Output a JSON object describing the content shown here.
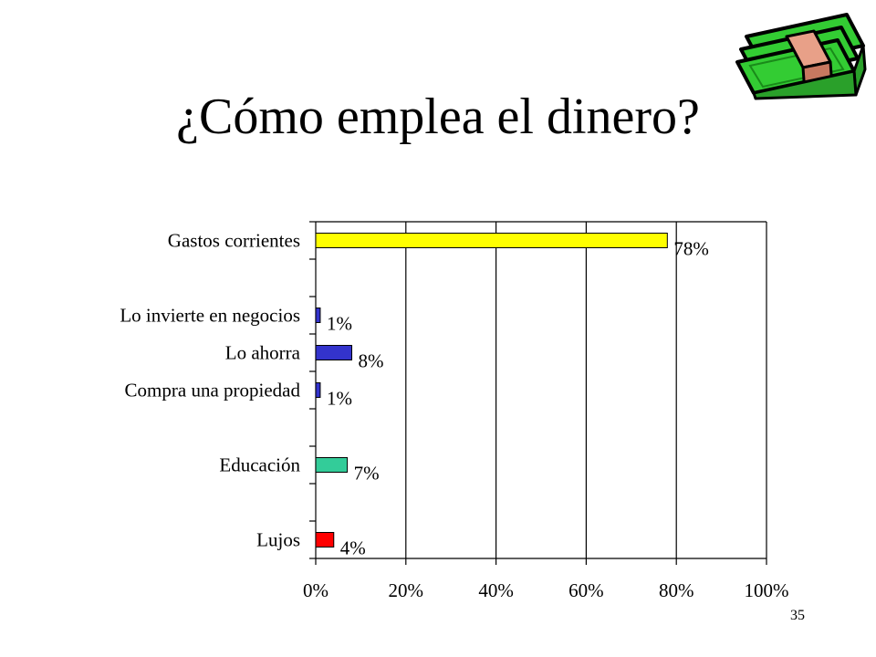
{
  "slide": {
    "title": "¿Cómo emplea el dinero?",
    "number": "35"
  },
  "icon": {
    "name": "money-stack-icon",
    "bill_color": "#33CC33",
    "band_color": "#E8A088"
  },
  "chart_data": {
    "type": "bar",
    "orientation": "horizontal",
    "title": "",
    "xlabel": "",
    "ylabel": "",
    "xlim": [
      0,
      100
    ],
    "x_tick_labels": [
      "0%",
      "20%",
      "40%",
      "60%",
      "80%",
      "100%"
    ],
    "x_ticks": [
      0,
      20,
      40,
      60,
      80,
      100
    ],
    "grid": "vertical",
    "legend": "none",
    "categories": [
      "Gastos corrientes",
      "",
      "Lo invierte en negocios",
      "Lo ahorra",
      "Compra una propiedad",
      "",
      "Educación",
      "",
      "Lujos"
    ],
    "values": [
      78,
      null,
      1,
      8,
      1,
      null,
      7,
      null,
      4
    ],
    "value_labels": [
      "78%",
      "",
      "1%",
      "8%",
      "1%",
      "",
      "7%",
      "",
      "4%"
    ],
    "colors": [
      "#FFFF00",
      "",
      "#3333CC",
      "#3333CC",
      "#3333CC",
      "",
      "#33CC99",
      "",
      "#FF0000"
    ]
  }
}
